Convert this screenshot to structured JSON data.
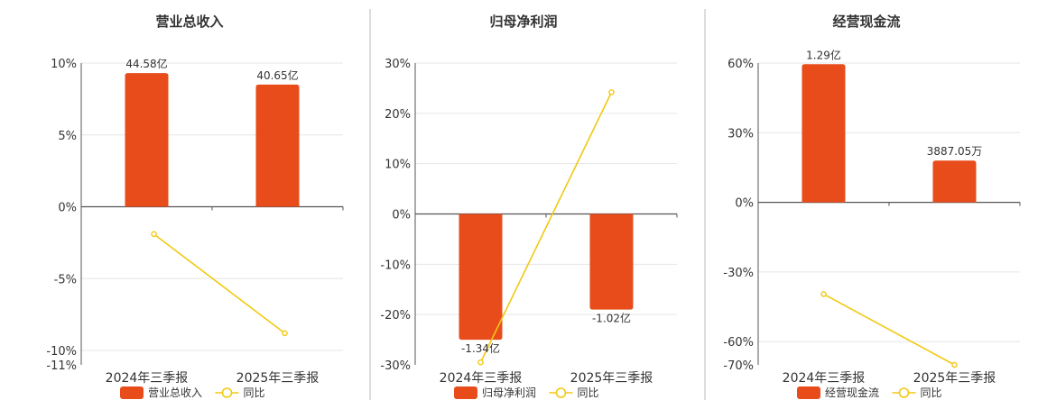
{
  "colors": {
    "bar": "#e84c1b",
    "line": "#f2c811",
    "axis": "#555555",
    "grid": "#e6e6e6",
    "divider": "#bbbbbb",
    "text": "#333333"
  },
  "chart_data": [
    {
      "type": "bar",
      "title": "营业总收入",
      "categories": [
        "2024年三季报",
        "2025年三季报"
      ],
      "series": [
        {
          "name": "营业总收入",
          "type": "bar",
          "values": [
            9.3,
            8.5
          ],
          "labels": [
            "44.58亿",
            "40.65亿"
          ]
        },
        {
          "name": "同比",
          "type": "line",
          "values": [
            -1.9,
            -8.8
          ]
        }
      ],
      "y_ticks": [
        "10%",
        "5%",
        "0%",
        "-5%",
        "-10%",
        "-11%"
      ],
      "y_tick_values": [
        10,
        5,
        0,
        -5,
        -10,
        -11
      ],
      "ylim": [
        -11,
        10
      ],
      "grid": true,
      "legend_position": "bottom"
    },
    {
      "type": "bar",
      "title": "归母净利润",
      "categories": [
        "2024年三季报",
        "2025年三季报"
      ],
      "series": [
        {
          "name": "归母净利润",
          "type": "bar",
          "values": [
            -25,
            -19
          ],
          "labels": [
            "-1.34亿",
            "-1.02亿"
          ]
        },
        {
          "name": "同比",
          "type": "line",
          "values": [
            -29.5,
            24.2
          ]
        }
      ],
      "y_ticks": [
        "30%",
        "20%",
        "10%",
        "0%",
        "-10%",
        "-20%",
        "-30%"
      ],
      "y_tick_values": [
        30,
        20,
        10,
        0,
        -10,
        -20,
        -30
      ],
      "ylim": [
        -30,
        30
      ],
      "grid": true,
      "legend_position": "bottom"
    },
    {
      "type": "bar",
      "title": "经营现金流",
      "categories": [
        "2024年三季报",
        "2025年三季报"
      ],
      "series": [
        {
          "name": "经营现金流",
          "type": "bar",
          "values": [
            59.5,
            18
          ],
          "labels": [
            "1.29亿",
            "3887.05万"
          ]
        },
        {
          "name": "同比",
          "type": "line",
          "values": [
            -39.5,
            -70
          ]
        }
      ],
      "y_ticks": [
        "60%",
        "30%",
        "0%",
        "-30%",
        "-60%",
        "-70%"
      ],
      "y_tick_values": [
        60,
        30,
        0,
        -30,
        -60,
        -70
      ],
      "ylim": [
        -70,
        60
      ],
      "grid": true,
      "legend_position": "bottom"
    }
  ]
}
